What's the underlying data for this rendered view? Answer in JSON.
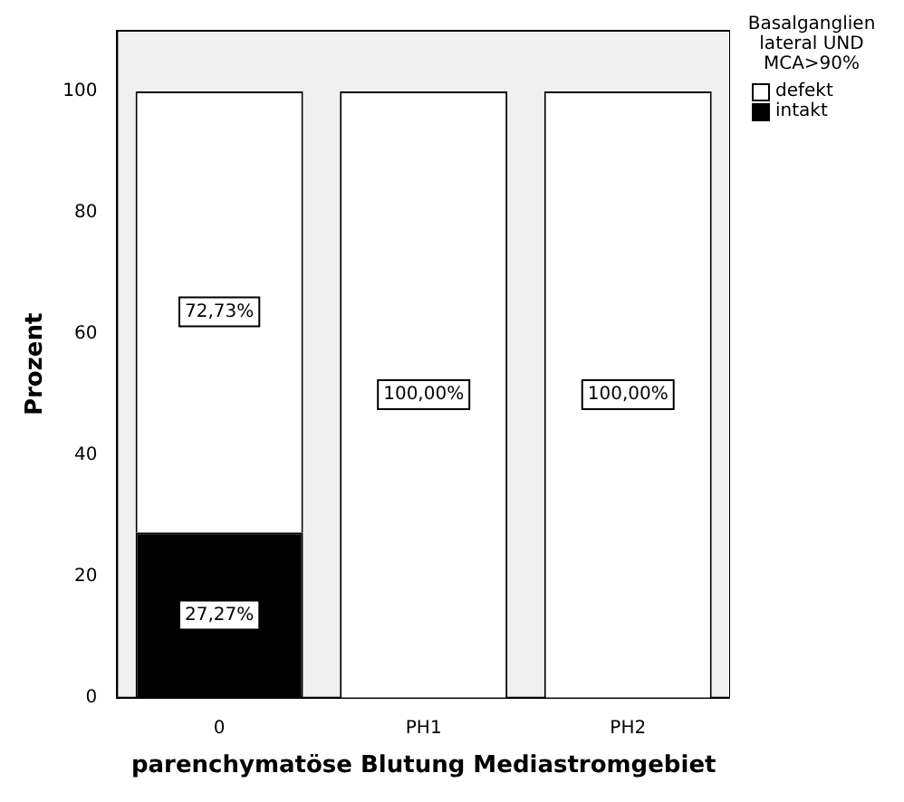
{
  "chart_data": {
    "type": "bar",
    "xlabel": "parenchymatöse Blutung Mediastromgebiet",
    "ylabel": "Prozent",
    "legend_title": "Basalganglien lateral UND MCA>90%",
    "categories": [
      "0",
      "PH1",
      "PH2"
    ],
    "stacked": true,
    "legend": "top right",
    "ylim": [
      0,
      110
    ],
    "yticks": [
      0,
      20,
      40,
      60,
      80,
      100
    ],
    "grid": false,
    "series": [
      {
        "name": "intakt",
        "color": "#000000",
        "values": [
          27.27,
          0,
          0
        ],
        "value_labels": [
          "27,27%",
          null,
          null
        ]
      },
      {
        "name": "defekt",
        "color": "#ffffff",
        "values": [
          72.73,
          100,
          100
        ],
        "value_labels": [
          "72,73%",
          "100,00%",
          "100,00%"
        ]
      }
    ]
  }
}
